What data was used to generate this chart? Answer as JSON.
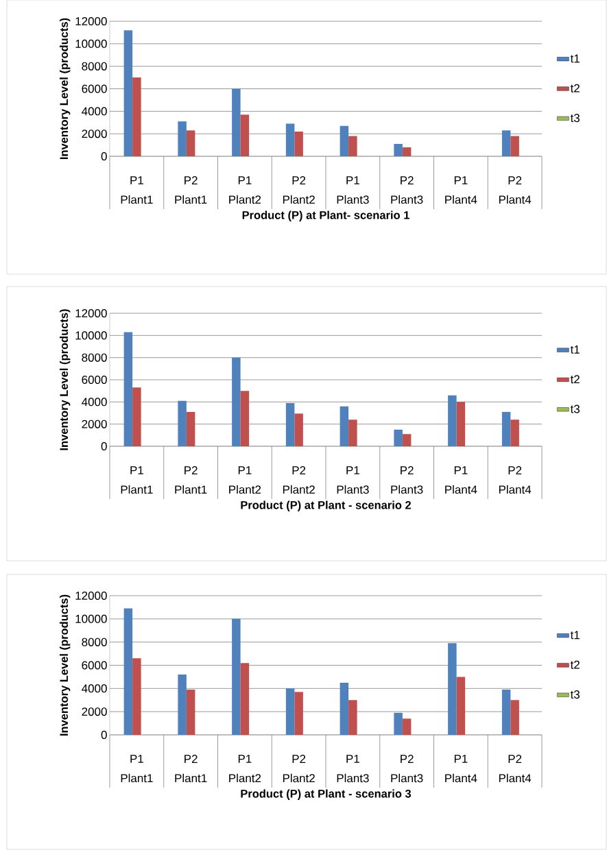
{
  "chart_data": [
    {
      "type": "bar",
      "xlabel": "Product (P) at Plant- scenario 1",
      "ylabel": "Inventory Level (products)",
      "categories": [
        "P1",
        "P2",
        "P1",
        "P2",
        "P1",
        "P2",
        "P1",
        "P2"
      ],
      "annotations": [
        "Plant1",
        "Plant1",
        "Plant2",
        "Plant2",
        "Plant3",
        "Plant3",
        "Plant4",
        "Plant4"
      ],
      "series": [
        {
          "name": "t1",
          "color": "#4f81bd",
          "values": [
            11200,
            3100,
            6000,
            2900,
            2700,
            1100,
            0,
            2300
          ]
        },
        {
          "name": "t2",
          "color": "#c0504d",
          "values": [
            7000,
            2300,
            3700,
            2200,
            1800,
            800,
            0,
            1800
          ]
        },
        {
          "name": "t3",
          "color": "#9bbb59",
          "values": [
            0,
            0,
            0,
            0,
            0,
            0,
            0,
            0
          ]
        }
      ],
      "ylim": [
        0,
        12000
      ],
      "yticks": [
        0,
        2000,
        4000,
        6000,
        8000,
        10000,
        12000
      ],
      "grid": "y",
      "legend": "right"
    },
    {
      "type": "bar",
      "xlabel": "Product (P) at Plant - scenario 2",
      "ylabel": "Inventory Level (products)",
      "categories": [
        "P1",
        "P2",
        "P1",
        "P2",
        "P1",
        "P2",
        "P1",
        "P2"
      ],
      "annotations": [
        "Plant1",
        "Plant1",
        "Plant2",
        "Plant2",
        "Plant3",
        "Plant3",
        "Plant4",
        "Plant4"
      ],
      "series": [
        {
          "name": "t1",
          "color": "#4f81bd",
          "values": [
            10300,
            4100,
            8000,
            3900,
            3600,
            1500,
            4600,
            3100
          ]
        },
        {
          "name": "t2",
          "color": "#c0504d",
          "values": [
            5300,
            3100,
            5000,
            2950,
            2400,
            1100,
            4000,
            2400
          ]
        },
        {
          "name": "t3",
          "color": "#9bbb59",
          "values": [
            0,
            0,
            0,
            0,
            0,
            0,
            0,
            0
          ]
        }
      ],
      "ylim": [
        0,
        12000
      ],
      "yticks": [
        0,
        2000,
        4000,
        6000,
        8000,
        10000,
        12000
      ],
      "grid": "y",
      "legend": "right"
    },
    {
      "type": "bar",
      "xlabel": "Product (P) at Plant - scenario 3",
      "ylabel": "Inventory Level (products)",
      "categories": [
        "P1",
        "P2",
        "P1",
        "P2",
        "P1",
        "P2",
        "P1",
        "P2"
      ],
      "annotations": [
        "Plant1",
        "Plant1",
        "Plant2",
        "Plant2",
        "Plant3",
        "Plant3",
        "Plant4",
        "Plant4"
      ],
      "series": [
        {
          "name": "t1",
          "color": "#4f81bd",
          "values": [
            10900,
            5200,
            10000,
            4000,
            4500,
            1900,
            7900,
            3900
          ]
        },
        {
          "name": "t2",
          "color": "#c0504d",
          "values": [
            6600,
            3900,
            6200,
            3700,
            3000,
            1400,
            5000,
            3000
          ]
        },
        {
          "name": "t3",
          "color": "#9bbb59",
          "values": [
            0,
            0,
            0,
            0,
            0,
            0,
            0,
            0
          ]
        }
      ],
      "ylim": [
        0,
        12000
      ],
      "yticks": [
        0,
        2000,
        4000,
        6000,
        8000,
        10000,
        12000
      ],
      "grid": "y",
      "legend": "right"
    }
  ]
}
